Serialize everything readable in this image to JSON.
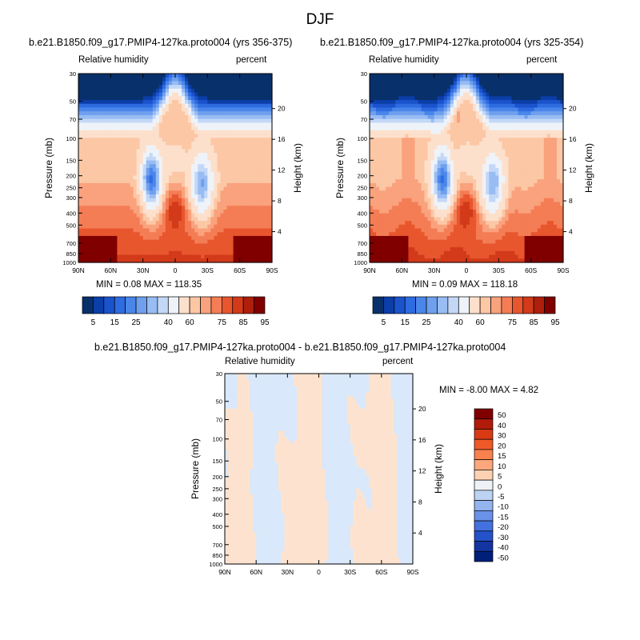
{
  "page": {
    "title": "DJF"
  },
  "panels": {
    "left": {
      "case_title": "b.e21.B1850.f09_g17.PMIP4-127ka.proto004 (yrs 356-375)",
      "var_label": "Relative humidity",
      "unit_label": "percent",
      "stats": "MIN =   0.08  MAX = 118.35"
    },
    "right": {
      "case_title": "b.e21.B1850.f09_g17.PMIP4-127ka.proto004 (yrs 325-354)",
      "var_label": "Relative humidity",
      "unit_label": "percent",
      "stats": "MIN =   0.09  MAX = 118.18"
    },
    "diff": {
      "case_title": "b.e21.B1850.f09_g17.PMIP4-127ka.proto004 - b.e21.B1850.f09_g17.PMIP4-127ka.proto004",
      "var_label": "Relative humidity",
      "unit_label": "percent",
      "stats": "MIN =  -8.00  MAX =   4.82"
    }
  },
  "chart_data": [
    {
      "type": "heatmap",
      "panel": "left",
      "title": "b.e21.B1850.f09_g17.PMIP4-127ka.proto004 (yrs 356-375)",
      "variable": "Relative humidity",
      "units": "percent",
      "ylabel": "Pressure (mb)",
      "y2label": "Height (km)",
      "x_ticks": [
        "90N",
        "60N",
        "30N",
        "0",
        "30S",
        "60S",
        "90S"
      ],
      "y_ticks": [
        "30",
        "50",
        "70",
        "100",
        "150",
        "200",
        "250",
        "300",
        "400",
        "500",
        "700",
        "850",
        "1000"
      ],
      "y2_ticks": [
        "20",
        "16",
        "12",
        "8",
        "4"
      ],
      "log_pressure_axis": true,
      "min": 0.08,
      "max": 118.35,
      "colorbar_levels": [
        5,
        10,
        15,
        20,
        25,
        30,
        35,
        40,
        50,
        60,
        65,
        70,
        75,
        80,
        85,
        90,
        95
      ],
      "colorbar_labels": [
        "5",
        "15",
        "25",
        "40",
        "60",
        "75",
        "85",
        "95"
      ]
    },
    {
      "type": "heatmap",
      "panel": "right",
      "title": "b.e21.B1850.f09_g17.PMIP4-127ka.proto004 (yrs 325-354)",
      "variable": "Relative humidity",
      "units": "percent",
      "ylabel": "Pressure (mb)",
      "y2label": "Height (km)",
      "x_ticks": [
        "90N",
        "60N",
        "30N",
        "0",
        "30S",
        "60S",
        "90S"
      ],
      "y_ticks": [
        "30",
        "50",
        "70",
        "100",
        "150",
        "200",
        "250",
        "300",
        "400",
        "500",
        "700",
        "850",
        "1000"
      ],
      "y2_ticks": [
        "20",
        "16",
        "12",
        "8",
        "4"
      ],
      "log_pressure_axis": true,
      "min": 0.09,
      "max": 118.18,
      "colorbar_levels": [
        5,
        10,
        15,
        20,
        25,
        30,
        35,
        40,
        50,
        60,
        65,
        70,
        75,
        80,
        85,
        90,
        95
      ],
      "colorbar_labels": [
        "5",
        "15",
        "25",
        "40",
        "60",
        "75",
        "85",
        "95"
      ]
    },
    {
      "type": "heatmap",
      "panel": "diff",
      "title": "b.e21.B1850.f09_g17.PMIP4-127ka.proto004 - b.e21.B1850.f09_g17.PMIP4-127ka.proto004",
      "variable": "Relative humidity",
      "units": "percent",
      "ylabel": "Pressure (mb)",
      "y2label": "Height (km)",
      "x_ticks": [
        "90N",
        "60N",
        "30N",
        "0",
        "30S",
        "60S",
        "90S"
      ],
      "y_ticks": [
        "30",
        "50",
        "70",
        "100",
        "150",
        "200",
        "250",
        "300",
        "400",
        "500",
        "700",
        "850",
        "1000"
      ],
      "y2_ticks": [
        "20",
        "16",
        "12",
        "8",
        "4"
      ],
      "log_pressure_axis": true,
      "min": -8.0,
      "max": 4.82,
      "colorbar_levels": [
        50,
        40,
        30,
        20,
        15,
        10,
        5,
        0,
        -5,
        -10,
        -15,
        -20,
        -30,
        -40,
        -50
      ],
      "colorbar_labels": [
        "50",
        "40",
        "30",
        "20",
        "15",
        "10",
        "5",
        "0",
        "-5",
        "-10",
        "-15",
        "-20",
        "-30",
        "-40",
        "-50"
      ]
    }
  ],
  "colormaps": {
    "abs": [
      "#08306b",
      "#0b3ea8",
      "#1a53cc",
      "#2f6be0",
      "#4a86ea",
      "#6fa0ee",
      "#98bcf3",
      "#c3d8f7",
      "#eef3f9",
      "#fde0cc",
      "#fcc7a5",
      "#f9a27d",
      "#f47d55",
      "#e8562e",
      "#d23a1a",
      "#ae1f0c",
      "#800000"
    ],
    "diff": [
      "#800000",
      "#b21a0a",
      "#d93a14",
      "#f05a28",
      "#f8814e",
      "#fca77c",
      "#fdd2b2",
      "#eef1f5",
      "#bcd3f3",
      "#94b4ef",
      "#6a92e8",
      "#4371df",
      "#2452c9",
      "#1335a3",
      "#001f7a"
    ],
    "diff_positive": "#fde3cf",
    "diff_negative": "#d9e8fb"
  }
}
